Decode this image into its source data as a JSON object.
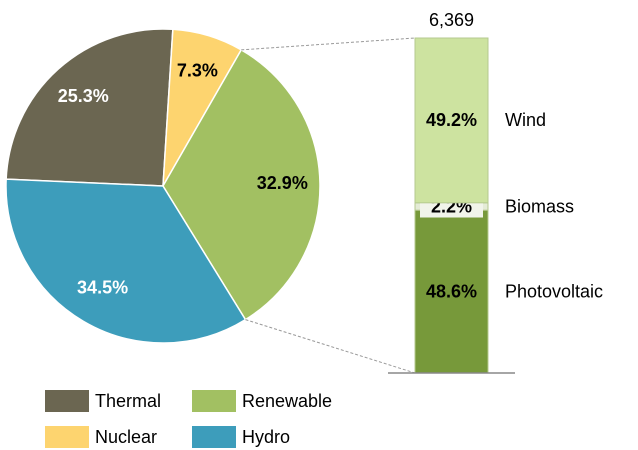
{
  "chart_data": [
    {
      "type": "pie",
      "categories": [
        "Thermal",
        "Nuclear",
        "Renewable",
        "Hydro"
      ],
      "values": [
        25.3,
        7.3,
        32.9,
        34.5
      ],
      "value_labels": [
        "25.3%",
        "7.3%",
        "32.9%",
        "34.5%"
      ],
      "colors": [
        "#6b6651",
        "#fdd46f",
        "#a2c062",
        "#3d9dbb"
      ],
      "legend": "bottom"
    },
    {
      "type": "stacked_bar",
      "total": {
        "value": 6369,
        "label": "6,369"
      },
      "ylim": [
        0,
        100
      ],
      "series": [
        {
          "name": "Photovoltaic",
          "color": "#77993a",
          "values": [
            48.6
          ],
          "value_labels": [
            "48.6%"
          ]
        },
        {
          "name": "Biomass",
          "color": "#e4ebd6",
          "values": [
            2.2
          ],
          "value_labels": [
            "2.2%"
          ]
        },
        {
          "name": "Wind",
          "color": "#cde3a0",
          "values": [
            49.2
          ],
          "value_labels": [
            "49.2%"
          ]
        }
      ]
    }
  ]
}
